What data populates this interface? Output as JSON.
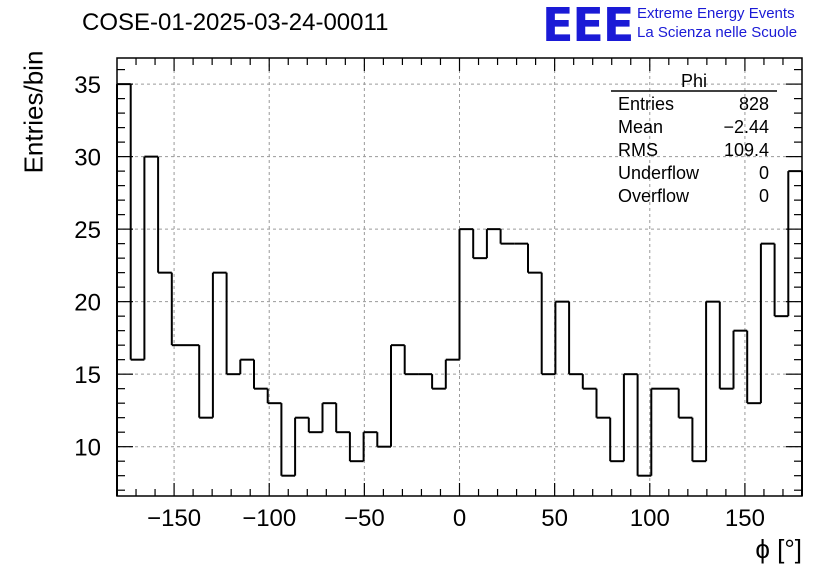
{
  "chart_data": {
    "type": "bar",
    "title": "COSE-01-2025-03-24-00011",
    "xlabel": "ϕ [°]",
    "ylabel": "Entries/bin",
    "xlim": [
      -180,
      180
    ],
    "ylim": [
      6.6,
      36.8
    ],
    "x_ticks": [
      -150,
      -100,
      -50,
      0,
      50,
      100,
      150
    ],
    "y_ticks": [
      10,
      15,
      20,
      25,
      30,
      35
    ],
    "grid": true,
    "bin_width": 7.2,
    "values": [
      35,
      16,
      30,
      22,
      17,
      17,
      12,
      22,
      15,
      16,
      14,
      13,
      8,
      12,
      11,
      13,
      11,
      9,
      11,
      10,
      17,
      15,
      15,
      14,
      16,
      25,
      23,
      25,
      24,
      24,
      22,
      15,
      20,
      15,
      14,
      12,
      9,
      15,
      8,
      14,
      14,
      12,
      9,
      20,
      14,
      18,
      13,
      24,
      19,
      29
    ],
    "stats_box": {
      "title": "Phi",
      "rows": [
        {
          "label": "Entries",
          "value": "828"
        },
        {
          "label": "Mean",
          "value": "−2.44"
        },
        {
          "label": "RMS",
          "value": "109.4"
        },
        {
          "label": "Underflow",
          "value": "0"
        },
        {
          "label": "Overflow",
          "value": "0"
        }
      ]
    }
  },
  "logo": {
    "mark": "EEE",
    "line1": "Extreme Energy Events",
    "line2": "La Scienza nelle Scuole",
    "color": "#1a1ad6"
  },
  "colors": {
    "line": "#000000",
    "grid": "#9a9a9a"
  }
}
